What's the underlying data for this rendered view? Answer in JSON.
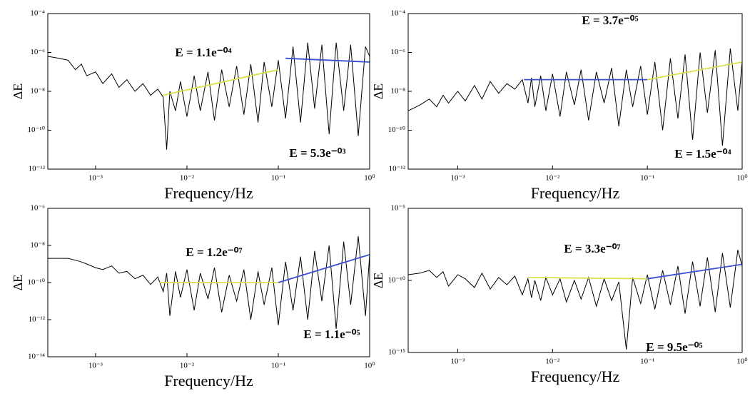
{
  "chart_data": [
    {
      "type": "line",
      "xscale": "log",
      "yscale": "log",
      "xlabel": "Frequency/Hz",
      "ylabel": "ΔE",
      "xlim": [
        0.0003,
        1
      ],
      "ylim": [
        1e-12,
        0.0001
      ],
      "xticks": [
        {
          "value": 0.001,
          "label": "10⁻³"
        },
        {
          "value": 0.01,
          "label": "10⁻²"
        },
        {
          "value": 0.1,
          "label": "10⁻¹"
        },
        {
          "value": 1,
          "label": "10⁰"
        }
      ],
      "yticks": [
        {
          "value": 1e-12,
          "label": "10⁻¹²"
        },
        {
          "value": 1e-10,
          "label": "10⁻¹⁰"
        },
        {
          "value": 1e-08,
          "label": "10⁻⁸"
        },
        {
          "value": 1e-06,
          "label": "10⁻⁶"
        },
        {
          "value": 0.0001,
          "label": "10⁻⁴"
        }
      ],
      "annotations": [
        "E = 1.1e⁻⁰⁴",
        "E = 5.3e⁻⁰³"
      ],
      "series": [
        {
          "color": "#000000",
          "x": [
            0.0003,
            0.0004,
            0.0005,
            0.0006,
            0.0007,
            0.0008,
            0.001,
            0.0012,
            0.0015,
            0.0018,
            0.0022,
            0.0027,
            0.0033,
            0.004,
            0.0048,
            0.0055,
            0.006,
            0.0065,
            0.0075,
            0.0085,
            0.01,
            0.012,
            0.014,
            0.017,
            0.02,
            0.024,
            0.029,
            0.035,
            0.042,
            0.05,
            0.06,
            0.07,
            0.085,
            0.1,
            0.12,
            0.145,
            0.175,
            0.21,
            0.25,
            0.3,
            0.36,
            0.43,
            0.52,
            0.62,
            0.75,
            0.9,
            1
          ],
          "values": [
            6.3e-07,
            5e-07,
            4e-07,
            1.3e-07,
            2.5e-07,
            6.3e-08,
            1e-07,
            2.5e-08,
            7.9e-08,
            1.6e-08,
            4e-08,
            1e-08,
            2.5e-08,
            6.3e-09,
            1.3e-08,
            5e-09,
            1e-11,
            1e-08,
            1e-09,
            3.2e-08,
            5e-10,
            6.3e-08,
            1e-09,
            1e-07,
            3.2e-10,
            1.3e-07,
            1.6e-09,
            2e-07,
            6.3e-10,
            2.5e-07,
            2.5e-10,
            3.2e-07,
            1.6e-09,
            4e-07,
            4e-10,
            2e-06,
            2.5e-10,
            3.2e-06,
            1.3e-09,
            2.5e-06,
            6.3e-11,
            3.2e-06,
            1e-09,
            2.5e-06,
            5e-11,
            2e-06,
            6.3e-07
          ]
        },
        {
          "color": "#d8e04a",
          "x": [
            0.0055,
            0.1
          ],
          "values": [
            6.3e-09,
            1.3e-07
          ]
        },
        {
          "color": "#3b4fd0",
          "x": [
            0.12,
            1
          ],
          "values": [
            5e-07,
            3.2e-07
          ]
        }
      ]
    },
    {
      "type": "line",
      "xscale": "log",
      "yscale": "log",
      "xlabel": "Frequency/Hz",
      "ylabel": "ΔE",
      "xlim": [
        0.0003,
        1
      ],
      "ylim": [
        1e-12,
        0.0001
      ],
      "xticks": [
        {
          "value": 0.001,
          "label": "10⁻³"
        },
        {
          "value": 0.01,
          "label": "10⁻²"
        },
        {
          "value": 0.1,
          "label": "10⁻¹"
        },
        {
          "value": 1,
          "label": "10⁰"
        }
      ],
      "yticks": [
        {
          "value": 1e-12,
          "label": "10⁻¹²"
        },
        {
          "value": 1e-10,
          "label": "10⁻¹⁰"
        },
        {
          "value": 1e-08,
          "label": "10⁻⁸"
        },
        {
          "value": 1e-06,
          "label": "10⁻⁶"
        },
        {
          "value": 0.0001,
          "label": "10⁻⁴"
        }
      ],
      "annotations": [
        "E = 3.7e⁻⁰⁵",
        "E = 1.5e⁻⁰⁴"
      ],
      "series": [
        {
          "color": "#000000",
          "x": [
            0.0003,
            0.0004,
            0.0005,
            0.0006,
            0.0007,
            0.0008,
            0.001,
            0.0012,
            0.0015,
            0.0018,
            0.0022,
            0.0027,
            0.0033,
            0.004,
            0.0048,
            0.0055,
            0.006,
            0.0065,
            0.0075,
            0.0085,
            0.01,
            0.012,
            0.014,
            0.017,
            0.02,
            0.024,
            0.029,
            0.035,
            0.042,
            0.05,
            0.06,
            0.07,
            0.085,
            0.1,
            0.12,
            0.145,
            0.175,
            0.21,
            0.25,
            0.3,
            0.36,
            0.43,
            0.52,
            0.62,
            0.75,
            0.9,
            1
          ],
          "values": [
            1e-09,
            2e-09,
            4e-09,
            1.6e-09,
            6.3e-09,
            2.5e-09,
            1e-08,
            3.2e-09,
            2e-08,
            4e-09,
            3.2e-08,
            7.9e-09,
            2.5e-08,
            1.3e-08,
            4e-08,
            2.5e-09,
            5e-08,
            1.6e-09,
            6.3e-08,
            1e-09,
            7.9e-08,
            5e-10,
            1e-07,
            2e-09,
            1.3e-07,
            3.2e-10,
            1e-07,
            2.5e-09,
            1.6e-07,
            1.6e-10,
            1.3e-07,
            1.6e-09,
            2e-07,
            6.3e-10,
            3.2e-07,
            1e-10,
            5e-07,
            4e-10,
            7.9e-07,
            3.2e-11,
            1e-06,
            7.9e-10,
            1.3e-06,
            1.6e-11,
            1.6e-06,
            1e-09,
            3.2e-07
          ]
        },
        {
          "color": "#3b4fd0",
          "x": [
            0.005,
            0.1
          ],
          "values": [
            4e-08,
            4e-08
          ]
        },
        {
          "color": "#d8e04a",
          "x": [
            0.1,
            1
          ],
          "values": [
            4e-08,
            3.2e-07
          ]
        }
      ]
    },
    {
      "type": "line",
      "xscale": "log",
      "yscale": "log",
      "xlabel": "Frequency/Hz",
      "ylabel": "ΔE",
      "xlim": [
        0.0003,
        1
      ],
      "ylim": [
        1e-14,
        1e-06
      ],
      "xticks": [
        {
          "value": 0.001,
          "label": "10⁻³"
        },
        {
          "value": 0.01,
          "label": "10⁻²"
        },
        {
          "value": 0.1,
          "label": "10⁻¹"
        },
        {
          "value": 1,
          "label": "10⁰"
        }
      ],
      "yticks": [
        {
          "value": 1e-14,
          "label": "10⁻¹⁴"
        },
        {
          "value": 1e-12,
          "label": "10⁻¹²"
        },
        {
          "value": 1e-10,
          "label": "10⁻¹⁰"
        },
        {
          "value": 1e-08,
          "label": "10⁻⁸"
        },
        {
          "value": 1e-06,
          "label": "10⁻⁶"
        }
      ],
      "annotations": [
        "E = 1.2e⁻⁰⁷",
        "E = 1.1e⁻⁰⁵"
      ],
      "series": [
        {
          "color": "#000000",
          "x": [
            0.0003,
            0.0004,
            0.0005,
            0.0006,
            0.0007,
            0.0008,
            0.001,
            0.0012,
            0.0015,
            0.0018,
            0.0022,
            0.0027,
            0.0033,
            0.004,
            0.0048,
            0.0055,
            0.006,
            0.0065,
            0.0075,
            0.0085,
            0.01,
            0.012,
            0.014,
            0.017,
            0.02,
            0.024,
            0.029,
            0.035,
            0.042,
            0.05,
            0.06,
            0.07,
            0.085,
            0.1,
            0.12,
            0.145,
            0.175,
            0.21,
            0.25,
            0.3,
            0.36,
            0.43,
            0.52,
            0.62,
            0.75,
            0.9,
            1
          ],
          "values": [
            2e-09,
            2e-09,
            2e-09,
            1.6e-09,
            1.3e-09,
            1e-09,
            6.3e-10,
            5e-10,
            7.9e-10,
            3.2e-10,
            4e-10,
            1.6e-10,
            2.5e-10,
            7.9e-11,
            2e-10,
            3.2e-11,
            3.2e-10,
            1.6e-12,
            4e-10,
            1.6e-11,
            5e-10,
            3.2e-12,
            3.2e-10,
            1.3e-11,
            6.3e-10,
            2.5e-12,
            2.5e-10,
            1e-11,
            5e-10,
            1e-12,
            4e-10,
            6.3e-12,
            6.3e-10,
            5e-13,
            1.3e-09,
            3.2e-12,
            2.5e-09,
            1e-12,
            5e-09,
            1e-11,
            1e-08,
            3.2e-13,
            1.6e-08,
            6.3e-12,
            3.2e-08,
            1.6e-12,
            3.2e-09
          ]
        },
        {
          "color": "#d8e04a",
          "x": [
            0.005,
            0.1
          ],
          "values": [
            1e-10,
            1e-10
          ]
        },
        {
          "color": "#3b4fd0",
          "x": [
            0.1,
            1
          ],
          "values": [
            1e-10,
            3.2e-09
          ]
        }
      ]
    },
    {
      "type": "line",
      "xscale": "log",
      "yscale": "log",
      "xlabel": "Frequency/Hz",
      "ylabel": "ΔE",
      "xlim": [
        0.0003,
        1
      ],
      "ylim": [
        1e-15,
        1e-05
      ],
      "xticks": [
        {
          "value": 0.001,
          "label": "10⁻³"
        },
        {
          "value": 0.01,
          "label": "10⁻²"
        },
        {
          "value": 0.1,
          "label": "10⁻¹"
        },
        {
          "value": 1,
          "label": "10⁰"
        }
      ],
      "yticks": [
        {
          "value": 1e-15,
          "label": "10⁻¹⁵"
        },
        {
          "value": 1e-10,
          "label": "10⁻¹⁰"
        },
        {
          "value": 1e-05,
          "label": "10⁻⁵"
        }
      ],
      "annotations": [
        "E = 3.3e⁻⁰⁷",
        "E = 9.5e⁻⁰⁵"
      ],
      "series": [
        {
          "color": "#000000",
          "x": [
            0.0003,
            0.0004,
            0.0005,
            0.0006,
            0.0007,
            0.0008,
            0.001,
            0.0012,
            0.0015,
            0.0018,
            0.0022,
            0.0027,
            0.0033,
            0.004,
            0.0048,
            0.0055,
            0.006,
            0.0065,
            0.0075,
            0.0085,
            0.01,
            0.012,
            0.014,
            0.017,
            0.02,
            0.024,
            0.029,
            0.035,
            0.042,
            0.05,
            0.06,
            0.07,
            0.085,
            0.1,
            0.12,
            0.145,
            0.175,
            0.21,
            0.25,
            0.3,
            0.36,
            0.43,
            0.52,
            0.62,
            0.75,
            0.9,
            1
          ],
          "values": [
            2.5e-10,
            3.2e-10,
            5e-10,
            1.6e-10,
            4e-10,
            4e-11,
            2.5e-10,
            1.3e-10,
            3.2e-11,
            3.2e-10,
            2.5e-11,
            1.6e-10,
            5e-11,
            2e-10,
            1e-11,
            1.3e-10,
            6.3e-12,
            1e-10,
            4e-12,
            1.6e-10,
            1e-11,
            1.3e-10,
            3.2e-12,
            1e-10,
            5e-12,
            1.6e-10,
            1.6e-12,
            1.3e-10,
            4e-12,
            7.9e-11,
            1.6e-15,
            1.6e-10,
            2.5e-12,
            2.5e-10,
            1e-12,
            5e-10,
            2e-12,
            1e-09,
            5e-13,
            2e-09,
            1.6e-12,
            4e-09,
            6.3e-13,
            7.9e-09,
            1.3e-12,
            1.3e-08,
            1e-09
          ]
        },
        {
          "color": "#d8e04a",
          "x": [
            0.0055,
            0.1
          ],
          "values": [
            1.6e-10,
            1.3e-10
          ]
        },
        {
          "color": "#3b4fd0",
          "x": [
            0.1,
            1
          ],
          "values": [
            1.3e-10,
            1.3e-09
          ]
        }
      ]
    }
  ]
}
